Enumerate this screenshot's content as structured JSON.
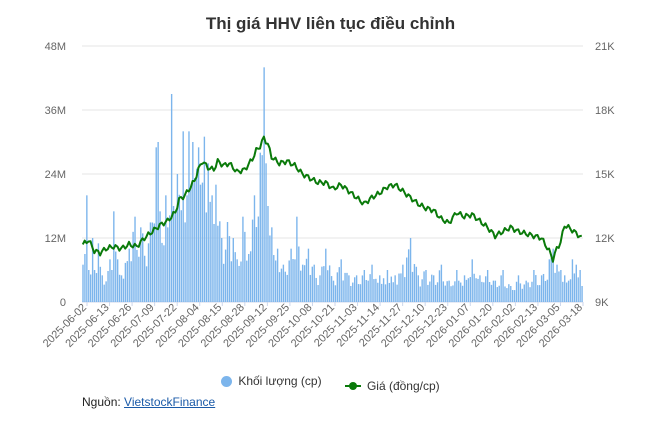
{
  "chart_data": {
    "type": "bar+line",
    "title": "Thị giá HHV liên tục điều chỉnh",
    "x_tick_labels": [
      "2025-06-02",
      "2025-06-13",
      "2025-06-26",
      "2025-07-09",
      "2025-07-22",
      "2025-08-04",
      "2025-08-15",
      "2025-08-28",
      "2025-09-12",
      "2025-09-25",
      "2025-10-08",
      "2025-10-21",
      "2025-11-03",
      "2025-11-14",
      "2025-11-27",
      "2025-12-10",
      "2025-12-23",
      "2026-01-07",
      "2026-01-20",
      "2026-02-02",
      "2026-02-13",
      "2026-03-05",
      "2026-03-18"
    ],
    "y_left": {
      "ticks": [
        "0",
        "12M",
        "24M",
        "36M",
        "48M"
      ],
      "range": [
        0,
        48000000
      ]
    },
    "y_right": {
      "ticks": [
        "9K",
        "12K",
        "15K",
        "18K",
        "21K"
      ],
      "range": [
        9000,
        21000
      ]
    },
    "grid": true,
    "legend_placement": "bottom",
    "series": [
      {
        "name": "Khối lượng (cp)",
        "type": "bar",
        "color": "#7cb5ec",
        "keypoints": [
          [
            0,
            7
          ],
          [
            1,
            9
          ],
          [
            2,
            20
          ],
          [
            3,
            6
          ],
          [
            5,
            12
          ],
          [
            6,
            6
          ],
          [
            8,
            11
          ],
          [
            10,
            5
          ],
          [
            14,
            8
          ],
          [
            15,
            6
          ],
          [
            16,
            17
          ],
          [
            18,
            8
          ],
          [
            20,
            5
          ],
          [
            24,
            10
          ],
          [
            27,
            16
          ],
          [
            30,
            14
          ],
          [
            34,
            11
          ],
          [
            38,
            29
          ],
          [
            39,
            30
          ],
          [
            40,
            17
          ],
          [
            43,
            20
          ],
          [
            44,
            14
          ],
          [
            46,
            39
          ],
          [
            47,
            18
          ],
          [
            49,
            24
          ],
          [
            52,
            32
          ],
          [
            54,
            20
          ],
          [
            55,
            32
          ],
          [
            57,
            30
          ],
          [
            59,
            25
          ],
          [
            60,
            29
          ],
          [
            61,
            22
          ],
          [
            63,
            31
          ],
          [
            65,
            26
          ],
          [
            67,
            20
          ],
          [
            69,
            22
          ],
          [
            72,
            12
          ],
          [
            75,
            15
          ],
          [
            78,
            12
          ],
          [
            80,
            8
          ],
          [
            83,
            16
          ],
          [
            86,
            9
          ],
          [
            89,
            20
          ],
          [
            92,
            28
          ],
          [
            94,
            44
          ],
          [
            95,
            26
          ],
          [
            96,
            18
          ],
          [
            98,
            14
          ],
          [
            101,
            10
          ],
          [
            104,
            7
          ],
          [
            108,
            10
          ],
          [
            111,
            16
          ],
          [
            114,
            7
          ],
          [
            117,
            10
          ],
          [
            120,
            7
          ],
          [
            123,
            5
          ],
          [
            126,
            10
          ],
          [
            130,
            4
          ],
          [
            134,
            8
          ],
          [
            138,
            5
          ],
          [
            142,
            5
          ],
          [
            146,
            6
          ],
          [
            150,
            7
          ],
          [
            154,
            5
          ],
          [
            158,
            6
          ],
          [
            162,
            5
          ],
          [
            166,
            7
          ],
          [
            170,
            12
          ],
          [
            174,
            5
          ],
          [
            178,
            6
          ],
          [
            182,
            5
          ],
          [
            186,
            7
          ],
          [
            190,
            4
          ],
          [
            194,
            6
          ],
          [
            198,
            5
          ],
          [
            202,
            8
          ],
          [
            206,
            5
          ],
          [
            210,
            6
          ],
          [
            214,
            4
          ],
          [
            218,
            6
          ],
          [
            222,
            3
          ],
          [
            226,
            5
          ],
          [
            230,
            4
          ],
          [
            234,
            6
          ],
          [
            238,
            5
          ],
          [
            242,
            8
          ],
          [
            244,
            10
          ],
          [
            246,
            7
          ],
          [
            248,
            6
          ],
          [
            250,
            5
          ],
          [
            252,
            4
          ],
          [
            254,
            8
          ],
          [
            256,
            7
          ],
          [
            258,
            6
          ],
          [
            259,
            3
          ]
        ],
        "unit": "millions of shares"
      },
      {
        "name": "Giá (đồng/cp)",
        "type": "line",
        "color": "#0a7a0a",
        "keypoints": [
          [
            0,
            11.7
          ],
          [
            3,
            11.9
          ],
          [
            6,
            11.4
          ],
          [
            9,
            11.3
          ],
          [
            12,
            11.5
          ],
          [
            16,
            11.6
          ],
          [
            20,
            11.5
          ],
          [
            24,
            11.7
          ],
          [
            28,
            11.6
          ],
          [
            32,
            12.0
          ],
          [
            36,
            12.3
          ],
          [
            40,
            12.6
          ],
          [
            44,
            12.8
          ],
          [
            48,
            13.2
          ],
          [
            50,
            13.8
          ],
          [
            53,
            14.0
          ],
          [
            56,
            14.4
          ],
          [
            58,
            14.7
          ],
          [
            60,
            15.2
          ],
          [
            62,
            15.6
          ],
          [
            65,
            15.3
          ],
          [
            68,
            15.2
          ],
          [
            70,
            15.6
          ],
          [
            73,
            15.4
          ],
          [
            76,
            15.5
          ],
          [
            80,
            15.1
          ],
          [
            84,
            15.2
          ],
          [
            88,
            15.7
          ],
          [
            90,
            16.1
          ],
          [
            92,
            16.3
          ],
          [
            94,
            16.7
          ],
          [
            96,
            16.4
          ],
          [
            98,
            15.8
          ],
          [
            102,
            15.5
          ],
          [
            106,
            15.6
          ],
          [
            110,
            15.4
          ],
          [
            114,
            15.0
          ],
          [
            118,
            14.8
          ],
          [
            122,
            14.6
          ],
          [
            126,
            14.6
          ],
          [
            130,
            14.3
          ],
          [
            134,
            14.5
          ],
          [
            138,
            14.2
          ],
          [
            142,
            13.9
          ],
          [
            146,
            13.6
          ],
          [
            150,
            13.9
          ],
          [
            154,
            14.1
          ],
          [
            158,
            14.4
          ],
          [
            162,
            14.5
          ],
          [
            166,
            14.2
          ],
          [
            170,
            13.9
          ],
          [
            174,
            13.6
          ],
          [
            178,
            13.4
          ],
          [
            182,
            13.3
          ],
          [
            186,
            12.9
          ],
          [
            190,
            12.7
          ],
          [
            194,
            13.2
          ],
          [
            198,
            13.0
          ],
          [
            202,
            13.1
          ],
          [
            206,
            12.8
          ],
          [
            210,
            12.5
          ],
          [
            214,
            12.1
          ],
          [
            218,
            12.3
          ],
          [
            222,
            12.5
          ],
          [
            226,
            12.3
          ],
          [
            230,
            12.2
          ],
          [
            234,
            12.1
          ],
          [
            238,
            12.0
          ],
          [
            242,
            11.4
          ],
          [
            244,
            11.0
          ],
          [
            246,
            11.5
          ],
          [
            248,
            11.8
          ],
          [
            250,
            12.6
          ],
          [
            252,
            12.5
          ],
          [
            255,
            12.3
          ],
          [
            259,
            12.0
          ]
        ],
        "unit": "thousand VND"
      }
    ]
  },
  "legend": {
    "volume_label": "Khối lượng (cp)",
    "price_label": "Giá (đồng/cp)"
  },
  "source": {
    "prefix": "Nguồn: ",
    "link_text": "VietstockFinance"
  }
}
